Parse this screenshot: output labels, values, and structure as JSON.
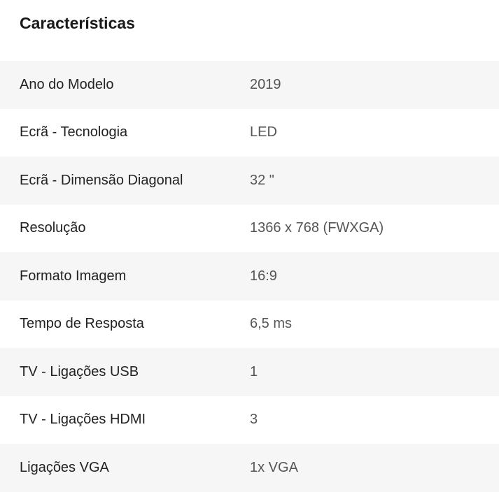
{
  "header": {
    "title": "Características"
  },
  "table": {
    "rows": [
      [
        "Ano do Modelo",
        "2019"
      ],
      [
        "Ecrã - Tecnologia",
        "LED"
      ],
      [
        "Ecrã - Dimensão Diagonal",
        "32 \""
      ],
      [
        "Resolução",
        "1366 x 768 (FWXGA)"
      ],
      [
        "Formato Imagem",
        "16:9"
      ],
      [
        "Tempo de Resposta",
        "6,5 ms"
      ],
      [
        "TV - Ligações USB",
        "1"
      ],
      [
        "TV - Ligações HDMI",
        "3"
      ],
      [
        "Ligações VGA",
        "1x VGA"
      ]
    ]
  }
}
